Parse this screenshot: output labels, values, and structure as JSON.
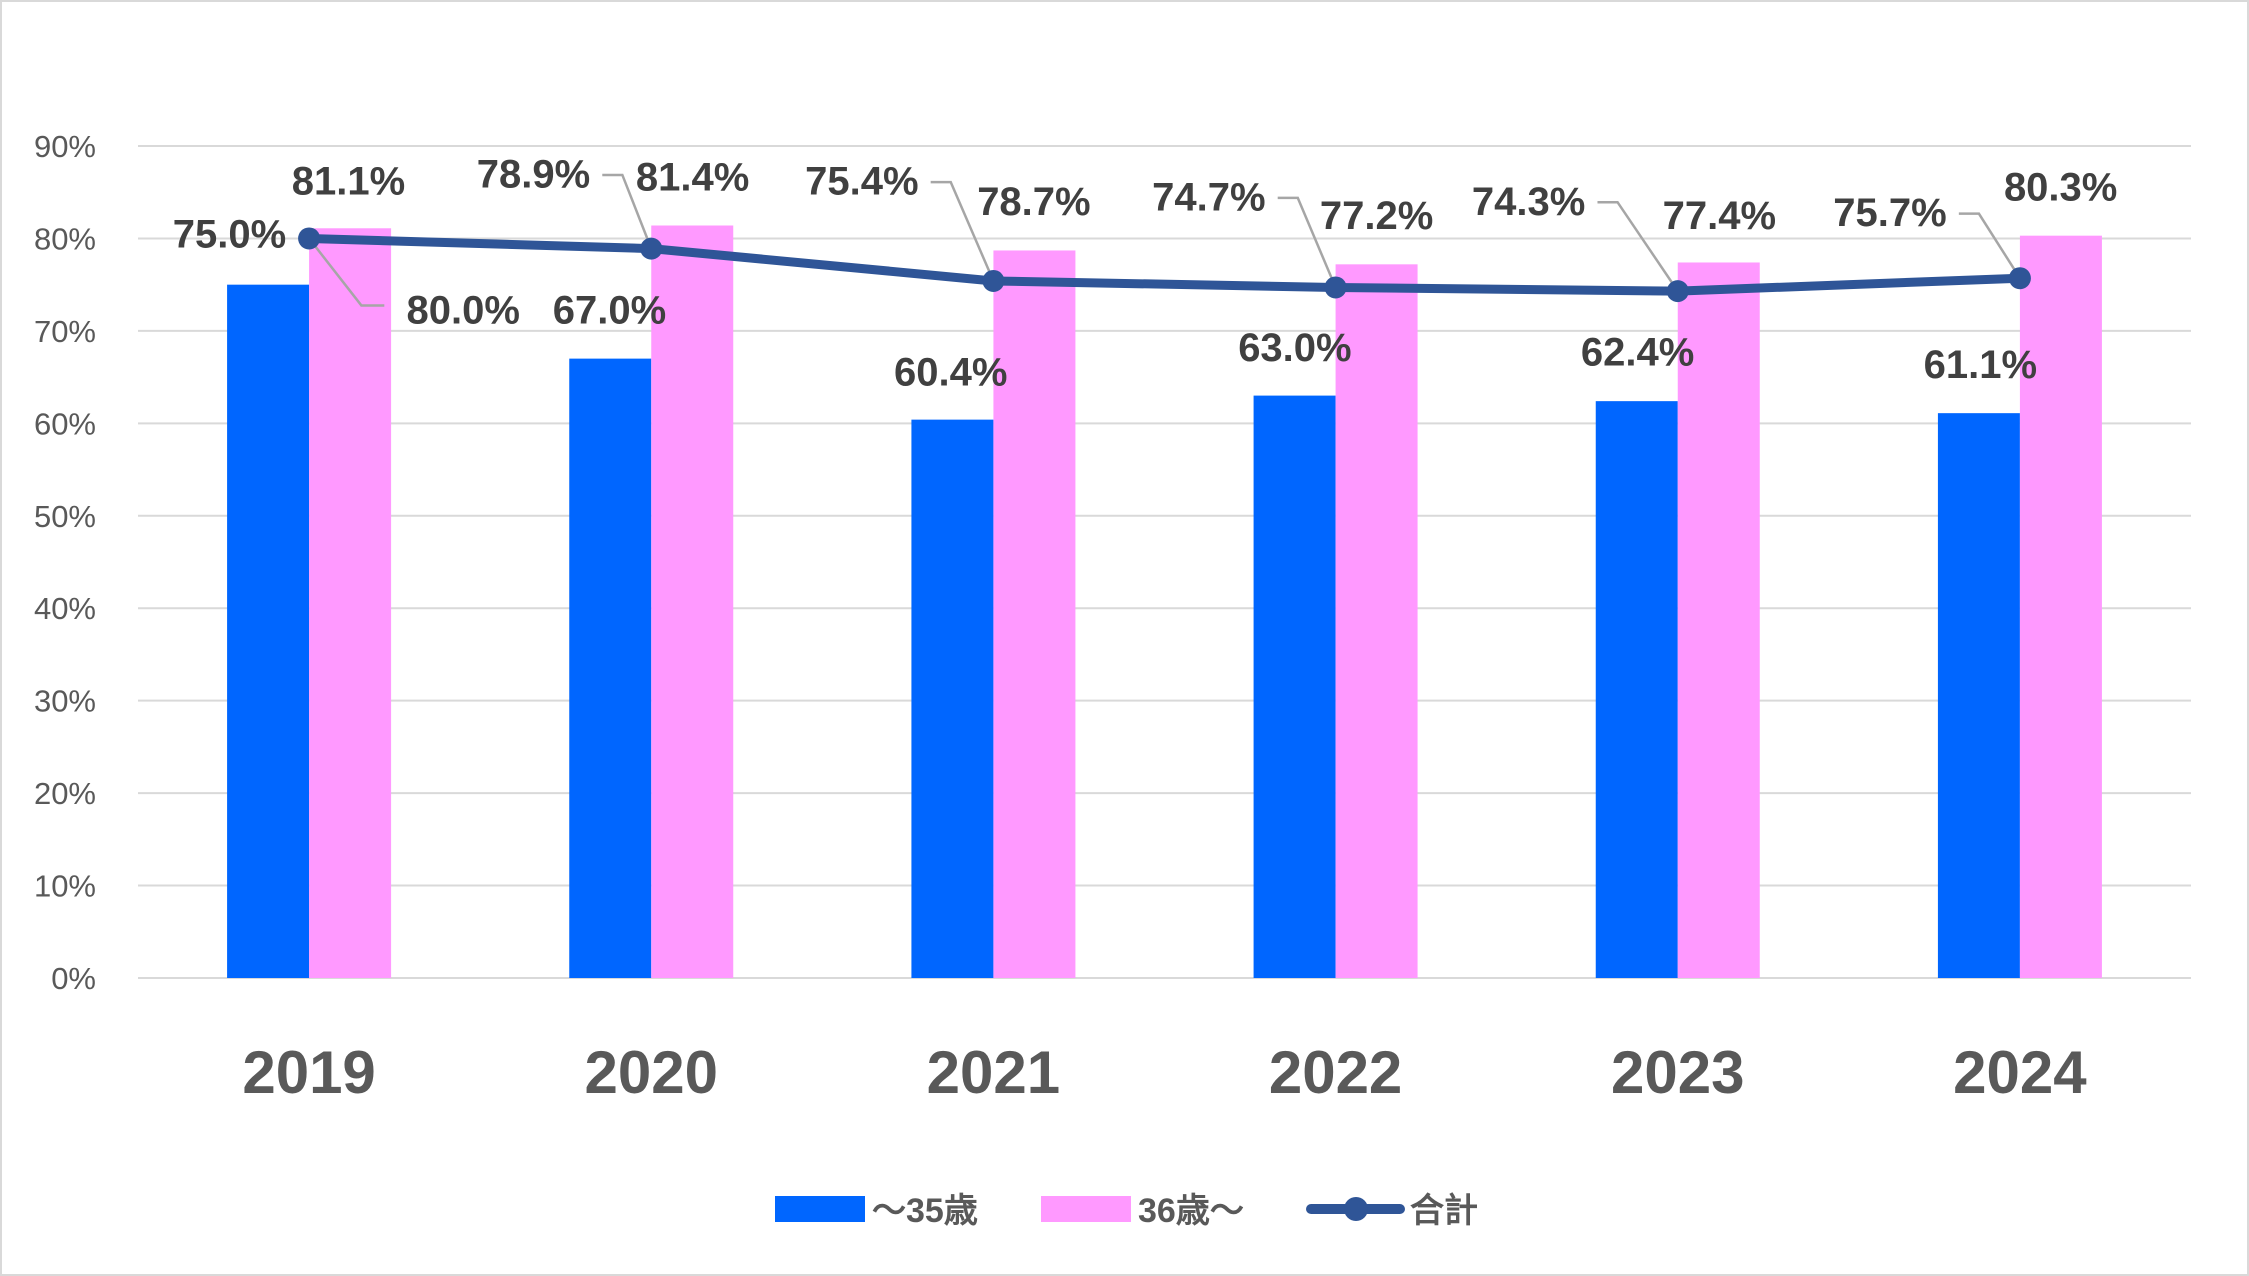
{
  "chart_data": {
    "type": "bar",
    "title": "",
    "xlabel": "",
    "ylabel": "",
    "categories": [
      "2019",
      "2020",
      "2021",
      "2022",
      "2023",
      "2024"
    ],
    "ylim": [
      0,
      90
    ],
    "yticks": [
      "0%",
      "10%",
      "20%",
      "30%",
      "40%",
      "50%",
      "60%",
      "70%",
      "80%",
      "90%"
    ],
    "grid": true,
    "legend_position": "bottom",
    "series": [
      {
        "name": "～35歳",
        "type": "bar",
        "color": "#0066FF",
        "values": [
          75.0,
          67.0,
          60.4,
          63.0,
          62.4,
          61.1
        ],
        "labels": [
          "75.0%",
          "67.0%",
          "60.4%",
          "63.0%",
          "62.4%",
          "61.1%"
        ]
      },
      {
        "name": "36歳～",
        "type": "bar",
        "color": "#FF99FF",
        "values": [
          81.1,
          81.4,
          78.7,
          77.2,
          77.4,
          80.3
        ],
        "labels": [
          "81.1%",
          "81.4%",
          "78.7%",
          "77.2%",
          "77.4%",
          "80.3%"
        ]
      },
      {
        "name": "合計",
        "type": "line",
        "color": "#2F5597",
        "values": [
          80.0,
          78.9,
          75.4,
          74.7,
          74.3,
          75.7
        ],
        "labels": [
          "80.0%",
          "78.9%",
          "75.4%",
          "74.7%",
          "74.3%",
          "75.7%"
        ]
      }
    ]
  }
}
